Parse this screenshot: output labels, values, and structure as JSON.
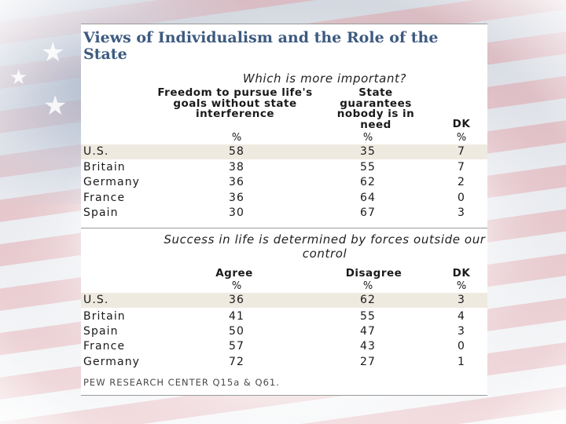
{
  "title": "Views of Individualism and the Role of the State",
  "chart_data": [
    {
      "type": "table",
      "question": "Which is more important?",
      "columns": [
        "Freedom to pursue life's goals without state interference",
        "State guarantees nobody is in need",
        "DK"
      ],
      "unit_row": [
        "%",
        "%",
        "%"
      ],
      "rows": [
        {
          "country": "U.S.",
          "values": [
            58,
            35,
            7
          ]
        },
        {
          "country": "Britain",
          "values": [
            38,
            55,
            7
          ]
        },
        {
          "country": "Germany",
          "values": [
            36,
            62,
            2
          ]
        },
        {
          "country": "France",
          "values": [
            36,
            64,
            0
          ]
        },
        {
          "country": "Spain",
          "values": [
            30,
            67,
            3
          ]
        }
      ]
    },
    {
      "type": "table",
      "question": "Success in life is determined by forces outside our control",
      "columns": [
        "Agree",
        "Disagree",
        "DK"
      ],
      "unit_row": [
        "%",
        "%",
        "%"
      ],
      "rows": [
        {
          "country": "U.S.",
          "values": [
            36,
            62,
            3
          ]
        },
        {
          "country": "Britain",
          "values": [
            41,
            55,
            4
          ]
        },
        {
          "country": "Spain",
          "values": [
            50,
            47,
            3
          ]
        },
        {
          "country": "France",
          "values": [
            57,
            43,
            0
          ]
        },
        {
          "country": "Germany",
          "values": [
            72,
            27,
            1
          ]
        }
      ]
    }
  ],
  "source": "PEW RESEARCH  CENTER Q15a & Q61.",
  "highlight_color": "#efeae0",
  "title_color": "#3d5a80"
}
